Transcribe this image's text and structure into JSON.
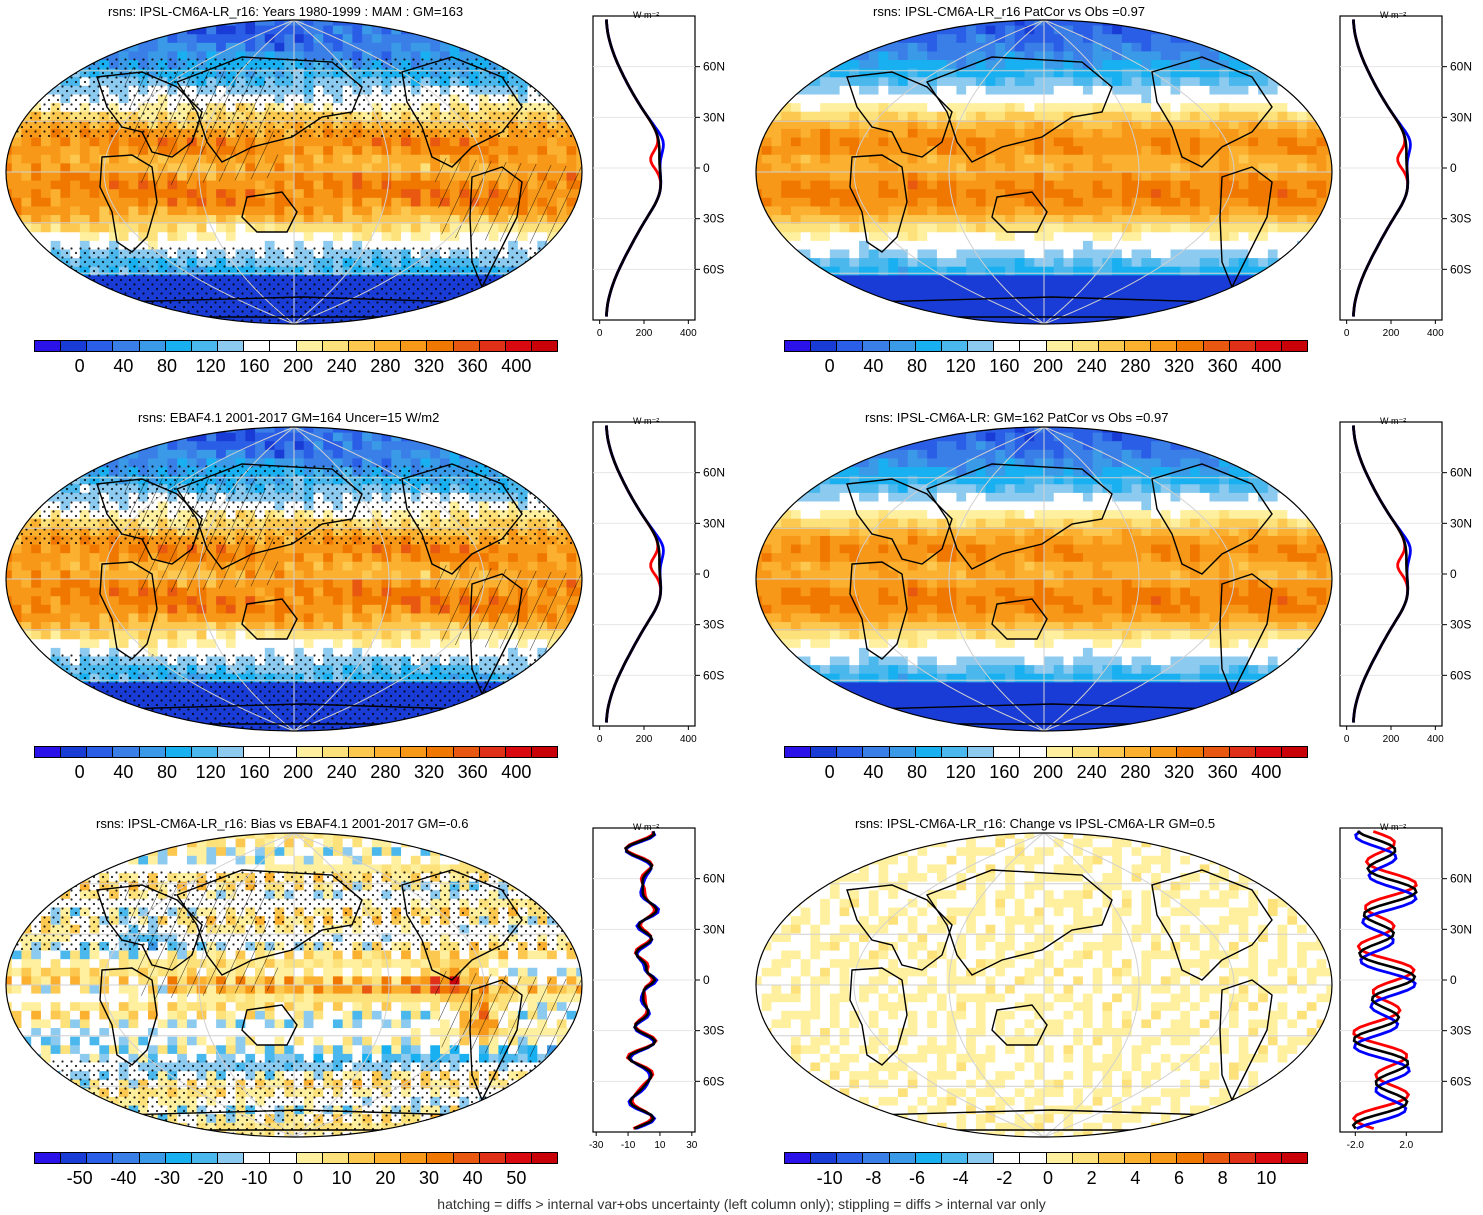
{
  "footnote": "hatching = diffs > internal var+obs uncertainty (left column only); stippling = diffs > internal var only",
  "palettes": {
    "abs": [
      "#2a12e8",
      "#1a3cd6",
      "#2a5ee6",
      "#3a7ee8",
      "#3a9ae8",
      "#18b0f0",
      "#4ab8ec",
      "#8ccaf0",
      "#ffffff",
      "#ffffff",
      "#fff0a0",
      "#fde17a",
      "#fcc850",
      "#fbb030",
      "#f89818",
      "#f07800",
      "#e85810",
      "#e03018",
      "#d80a10",
      "#c80008"
    ],
    "diff": [
      "#2a12e8",
      "#1a3cd6",
      "#2a5ee6",
      "#3a7ee8",
      "#3a9ae8",
      "#18b0f0",
      "#4ab8ec",
      "#8ccaf0",
      "#ffffff",
      "#ffffff",
      "#fff0a0",
      "#fde17a",
      "#fcc850",
      "#fbb030",
      "#f89818",
      "#f07800",
      "#e85810",
      "#e03018",
      "#d80a10",
      "#c80008"
    ]
  },
  "profile_colors": {
    "model": "#ff0000",
    "obs": "#0000ff",
    "ensemble": "#000000"
  },
  "unit_label": "W m⁻²",
  "lat_ticks": [
    "60N",
    "30N",
    "0",
    "30S",
    "60S"
  ],
  "panels": [
    {
      "id": "p1",
      "title": "rsns: IPSL-CM6A-LR_r16: Years 1980-1999 : MAM : GM=163",
      "kind": "abs",
      "field": "absA",
      "cbar_labels": [
        "0",
        "40",
        "80",
        "120",
        "160",
        "200",
        "240",
        "280",
        "320",
        "360",
        "400"
      ],
      "profile_ticks": [
        "0",
        "200",
        "400"
      ],
      "profile_range": [
        -30,
        430
      ],
      "hatch": true,
      "stipple": true
    },
    {
      "id": "p2",
      "title": "rsns: IPSL-CM6A-LR_r16 PatCor vs Obs =0.97",
      "kind": "abs",
      "field": "absB",
      "cbar_labels": [
        "0",
        "40",
        "80",
        "120",
        "160",
        "200",
        "240",
        "280",
        "320",
        "360",
        "400"
      ],
      "profile_ticks": [
        "0",
        "200",
        "400"
      ],
      "profile_range": [
        -30,
        430
      ],
      "hatch": false,
      "stipple": false
    },
    {
      "id": "p3",
      "title": "rsns: EBAF4.1 2001-2017 GM=164 Uncer=15 W/m2",
      "kind": "abs",
      "field": "absC",
      "cbar_labels": [
        "0",
        "40",
        "80",
        "120",
        "160",
        "200",
        "240",
        "280",
        "320",
        "360",
        "400"
      ],
      "profile_ticks": [
        "0",
        "200",
        "400"
      ],
      "profile_range": [
        -30,
        430
      ],
      "hatch": true,
      "stipple": true
    },
    {
      "id": "p4",
      "title": "rsns: IPSL-CM6A-LR: GM=162 PatCor vs Obs =0.97",
      "kind": "abs",
      "field": "absB",
      "cbar_labels": [
        "0",
        "40",
        "80",
        "120",
        "160",
        "200",
        "240",
        "280",
        "320",
        "360",
        "400"
      ],
      "profile_ticks": [
        "0",
        "200",
        "400"
      ],
      "profile_range": [
        -30,
        430
      ],
      "hatch": false,
      "stipple": false
    },
    {
      "id": "p5",
      "title": "rsns: IPSL-CM6A-LR_r16: Bias vs EBAF4.1 2001-2017 GM=-0.6",
      "kind": "diff",
      "field": "bias",
      "cbar_labels": [
        "-50",
        "-40",
        "-30",
        "-20",
        "-10",
        "0",
        "10",
        "20",
        "30",
        "40",
        "50"
      ],
      "profile_ticks": [
        "-30",
        "-10",
        "10",
        "30"
      ],
      "profile_range": [
        -32,
        32
      ],
      "hatch": true,
      "stipple": true
    },
    {
      "id": "p6",
      "title": "rsns: IPSL-CM6A-LR_r16: Change vs IPSL-CM6A-LR GM=0.5",
      "kind": "diff",
      "field": "change",
      "cbar_labels": [
        "-10",
        "-8",
        "-6",
        "-4",
        "-2",
        "0",
        "2",
        "4",
        "6",
        "8",
        "10"
      ],
      "profile_ticks": [
        "-2.0",
        "2.0"
      ],
      "profile_range": [
        -3.2,
        4.8
      ],
      "hatch": false,
      "stipple": false
    }
  ],
  "chart_data": [
    {
      "type": "heatmap",
      "title": "rsns: IPSL-CM6A-LR_r16: Years 1980-1999 : MAM : GM=163",
      "colorbar": [
        0,
        40,
        80,
        120,
        160,
        200,
        240,
        280,
        320,
        360,
        400
      ],
      "zonal_mean": {
        "lat": [
          80,
          60,
          30,
          15,
          0,
          -15,
          -30,
          -60,
          -80
        ],
        "model": [
          10,
          60,
          230,
          250,
          190,
          240,
          170,
          70,
          10
        ],
        "obs": [
          10,
          60,
          225,
          265,
          220,
          245,
          170,
          70,
          10
        ]
      }
    },
    {
      "type": "heatmap",
      "title": "rsns: IPSL-CM6A-LR_r16 PatCor vs Obs =0.97",
      "colorbar": [
        0,
        40,
        80,
        120,
        160,
        200,
        240,
        280,
        320,
        360,
        400
      ]
    },
    {
      "type": "heatmap",
      "title": "rsns: EBAF4.1 2001-2017 GM=164 Uncer=15 W/m2",
      "colorbar": [
        0,
        40,
        80,
        120,
        160,
        200,
        240,
        280,
        320,
        360,
        400
      ]
    },
    {
      "type": "heatmap",
      "title": "rsns: IPSL-CM6A-LR: GM=162 PatCor vs Obs =0.97",
      "colorbar": [
        0,
        40,
        80,
        120,
        160,
        200,
        240,
        280,
        320,
        360,
        400
      ]
    },
    {
      "type": "heatmap",
      "title": "rsns: IPSL-CM6A-LR_r16: Bias vs EBAF4.1 2001-2017 GM=-0.6",
      "colorbar": [
        -50,
        -40,
        -30,
        -20,
        -10,
        0,
        10,
        20,
        30,
        40,
        50
      ],
      "zonal_mean": {
        "lat": [
          75,
          60,
          30,
          15,
          0,
          -15,
          -30,
          -45,
          -60,
          -70
        ],
        "bias": [
          10,
          0,
          -5,
          15,
          -20,
          0,
          -10,
          -28,
          0,
          -2
        ]
      }
    },
    {
      "type": "heatmap",
      "title": "rsns: IPSL-CM6A-LR_r16: Change vs IPSL-CM6A-LR GM=0.5",
      "colorbar": [
        -10,
        -8,
        -6,
        -4,
        -2,
        0,
        2,
        4,
        6,
        8,
        10
      ],
      "zonal_mean": {
        "lat": [
          75,
          60,
          30,
          15,
          0,
          -15,
          -30,
          -45,
          -60,
          -70
        ],
        "change": [
          3,
          1,
          0,
          1,
          -1,
          1,
          0,
          -2,
          2,
          0
        ]
      }
    }
  ]
}
